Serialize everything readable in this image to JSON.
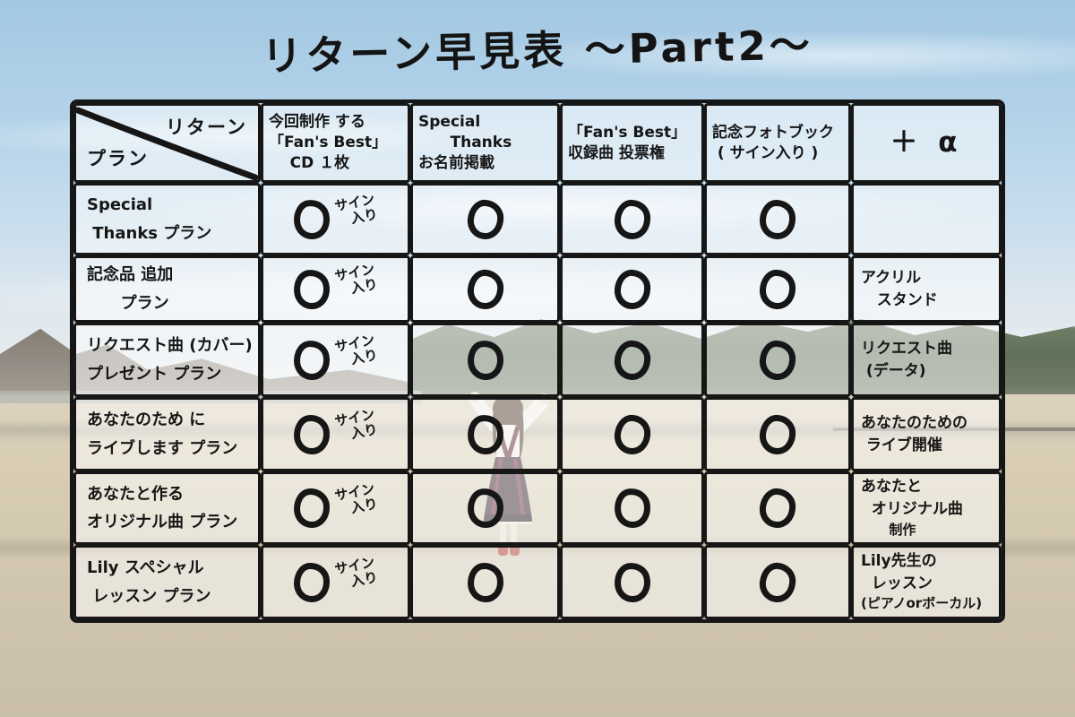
{
  "title": "リターン早見表 〜Part2〜",
  "colors": {
    "ink": "#161616",
    "sky_top": "#a3c8e3",
    "sky_bottom": "#e9edef",
    "mountain": "#837b71",
    "trees": "#62715a",
    "field": "#d1c6af",
    "cell_overlay": "rgba(255,255,255,0.52)"
  },
  "table": {
    "corner": {
      "top_right": "リターン",
      "bottom_left": "プラン"
    },
    "headers": [
      {
        "lines": [
          "今回制作 する",
          "「Fan's Best」",
          "    CD １枚"
        ]
      },
      {
        "lines": [
          "Special",
          "      Thanks",
          "お名前掲載"
        ]
      },
      {
        "lines": [
          "「Fan's Best」",
          "収録曲 投票権"
        ]
      },
      {
        "lines": [
          "記念フォトブック",
          " ( サイン入り )"
        ]
      },
      {
        "lines": [
          "＋ α"
        ]
      }
    ],
    "sign_note": [
      "サイン",
      "入り"
    ],
    "rows": [
      {
        "plan": [
          "Special",
          " Thanks プラン"
        ],
        "marks": {
          "cd": true,
          "thanks": true,
          "vote": true,
          "photobook": true
        },
        "alpha": []
      },
      {
        "plan": [
          "記念品 追加",
          "      プラン"
        ],
        "marks": {
          "cd": true,
          "thanks": true,
          "vote": true,
          "photobook": true
        },
        "alpha": [
          "アクリル",
          "   スタンド"
        ]
      },
      {
        "plan": [
          "リクエスト曲 (カバー)",
          "プレゼント プラン"
        ],
        "marks": {
          "cd": true,
          "thanks": true,
          "vote": true,
          "photobook": true
        },
        "alpha": [
          "リクエスト曲",
          " (データ)"
        ]
      },
      {
        "plan": [
          "あなたのため に",
          "ライブします プラン"
        ],
        "marks": {
          "cd": true,
          "thanks": true,
          "vote": true,
          "photobook": true
        },
        "alpha": [
          "あなたのための",
          " ライブ開催"
        ]
      },
      {
        "plan": [
          "あなたと作る",
          "オリジナル曲 プラン"
        ],
        "marks": {
          "cd": true,
          "thanks": true,
          "vote": true,
          "photobook": true
        },
        "alpha": [
          "あなたと",
          "  オリジナル曲",
          "      制作"
        ]
      },
      {
        "plan": [
          "Lily スペシャル",
          " レッスン プラン"
        ],
        "marks": {
          "cd": true,
          "thanks": true,
          "vote": true,
          "photobook": true
        },
        "alpha": [
          "Lily先生の",
          "  レッスン",
          "(ピアノorボーカル)"
        ]
      }
    ]
  }
}
